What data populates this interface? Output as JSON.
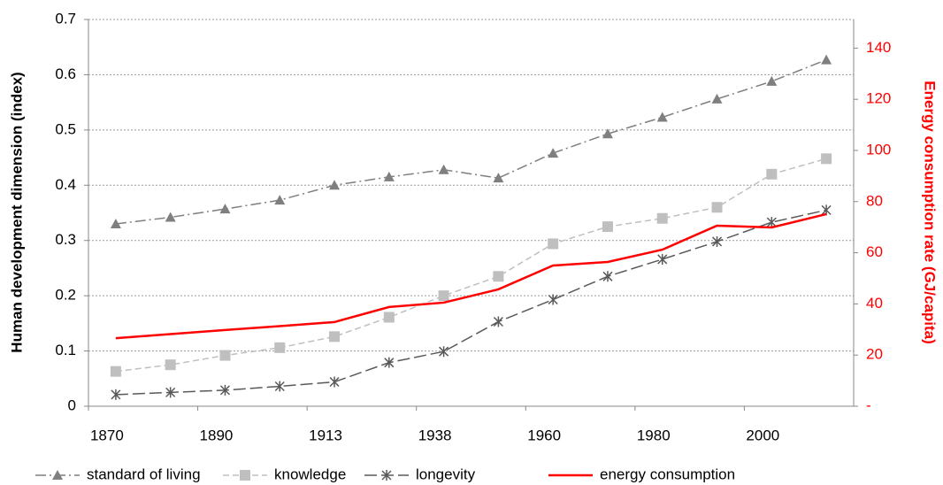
{
  "chart_data": {
    "type": "line",
    "categories": [
      "1870",
      null,
      "1890",
      null,
      "1913",
      null,
      "1938",
      null,
      "1960",
      null,
      "1980",
      null,
      "2000",
      null
    ],
    "y_label": "Human development dimension (index)",
    "y2_label": "Energy consumption rate (GJ/capita)",
    "ylim": [
      0,
      0.7
    ],
    "yticks": [
      0,
      0.1,
      0.2,
      0.3,
      0.4,
      0.5,
      0.6,
      0.7
    ],
    "y2lim": [
      0,
      151.2
    ],
    "y2ticks": [
      {
        "value": 0,
        "label": "-"
      },
      20,
      40,
      60,
      80,
      100,
      120,
      140
    ],
    "y2_color": "#ff0000",
    "grid": true,
    "legend": "bottom",
    "series": [
      {
        "name": "standard of living",
        "color": "#7f7f7f",
        "dash": "12 4 2 4",
        "marker": "triangle",
        "values": [
          0.33,
          0.342,
          0.357,
          0.373,
          0.4,
          0.415,
          0.428,
          0.413,
          0.458,
          0.493,
          0.523,
          0.556,
          0.588,
          0.627
        ]
      },
      {
        "name": "knowledge",
        "color": "#bfbfbf",
        "dash": "7 4",
        "marker": "square",
        "values": [
          0.063,
          0.075,
          0.092,
          0.106,
          0.126,
          0.161,
          0.2,
          0.235,
          0.294,
          0.325,
          0.34,
          0.36,
          0.42,
          0.448
        ]
      },
      {
        "name": "longevity",
        "color": "#595959",
        "dash": "14 5",
        "marker": "star",
        "values": [
          0.021,
          0.025,
          0.029,
          0.036,
          0.044,
          0.079,
          0.099,
          0.153,
          0.193,
          0.235,
          0.266,
          0.298,
          0.333,
          0.355
        ]
      },
      {
        "name": "energy consumption",
        "color": "#ff0000",
        "dash": "",
        "marker": "none",
        "axis": "y2",
        "values": [
          26.6,
          28.2,
          29.8,
          31.3,
          32.9,
          38.8,
          40.5,
          45.7,
          55,
          56.4,
          61.2,
          70.6,
          69.9,
          75.1
        ]
      }
    ]
  }
}
